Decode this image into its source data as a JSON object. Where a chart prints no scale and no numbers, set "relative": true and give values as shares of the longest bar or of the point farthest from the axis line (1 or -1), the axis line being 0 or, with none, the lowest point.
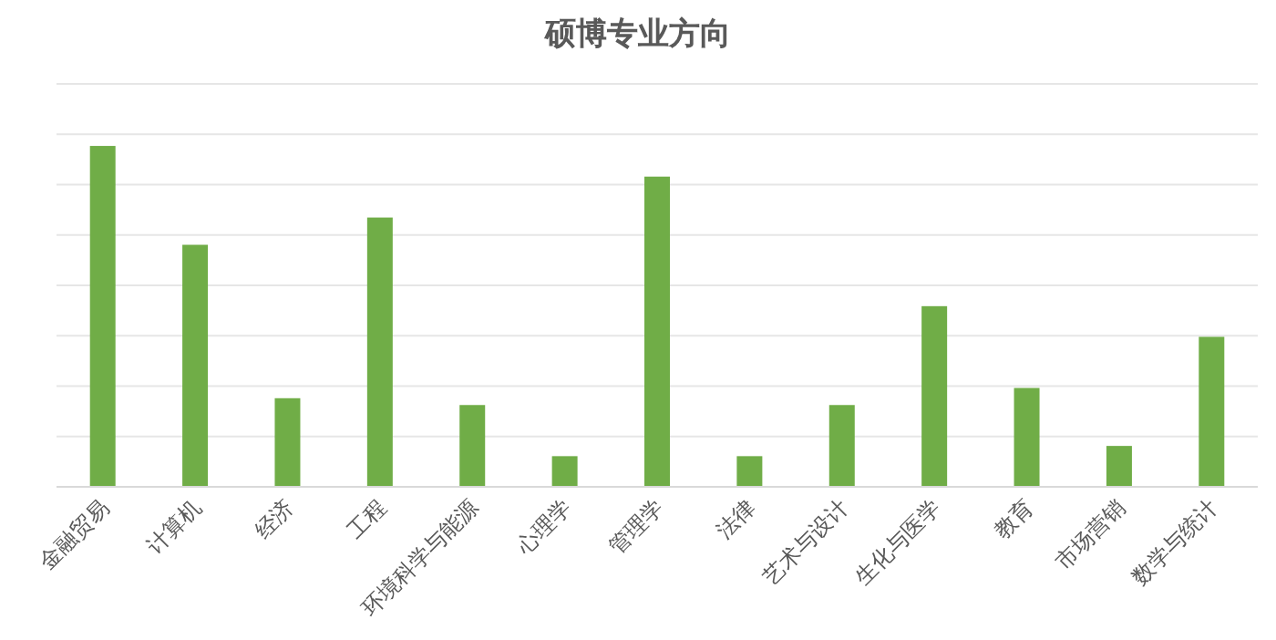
{
  "chart_data": {
    "type": "bar",
    "title": "硕博专业方向",
    "relative": true,
    "grid": "y",
    "color": "#70ad47",
    "categories": [
      "金融贸易",
      "计算机",
      "经济",
      "工程",
      "环境科学与能源",
      "心理学",
      "管理学",
      "法律",
      "艺术与设计",
      "生化与医学",
      "教育",
      "市场营销",
      "数学与统计"
    ],
    "values": [
      1,
      0.71,
      0.26,
      0.79,
      0.24,
      0.09,
      0.91,
      0.09,
      0.24,
      0.53,
      0.29,
      0.12,
      0.44
    ]
  }
}
